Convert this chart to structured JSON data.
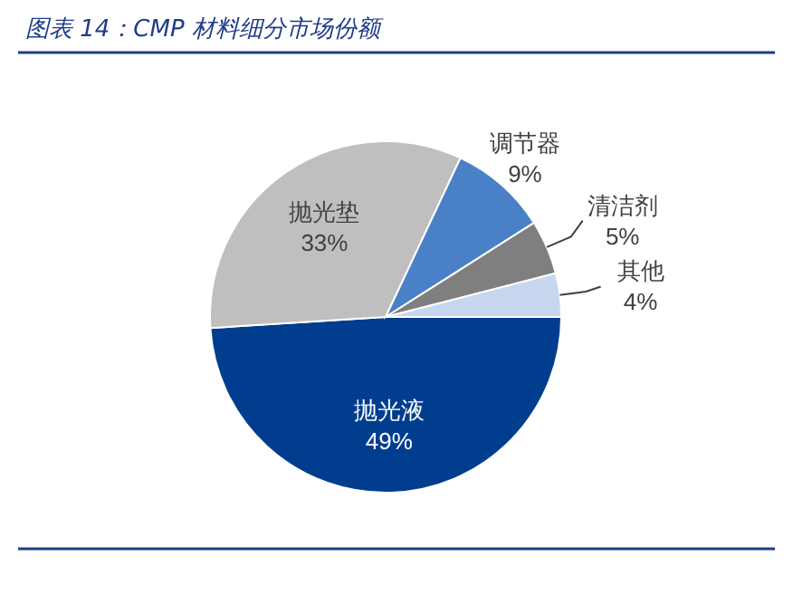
{
  "chart_data": {
    "type": "pie",
    "title": "图表 14：CMP 材料细分市场份额",
    "categories": [
      "抛光液",
      "抛光垫",
      "调节器",
      "清洁剂",
      "其他"
    ],
    "values": [
      49,
      33,
      9,
      5,
      4
    ],
    "value_labels": [
      "49%",
      "33%",
      "9%",
      "5%",
      "4%"
    ],
    "colors": [
      "#003d8f",
      "#bfbfbf",
      "#4a80c8",
      "#7f7f7f",
      "#c6d7ef"
    ]
  }
}
